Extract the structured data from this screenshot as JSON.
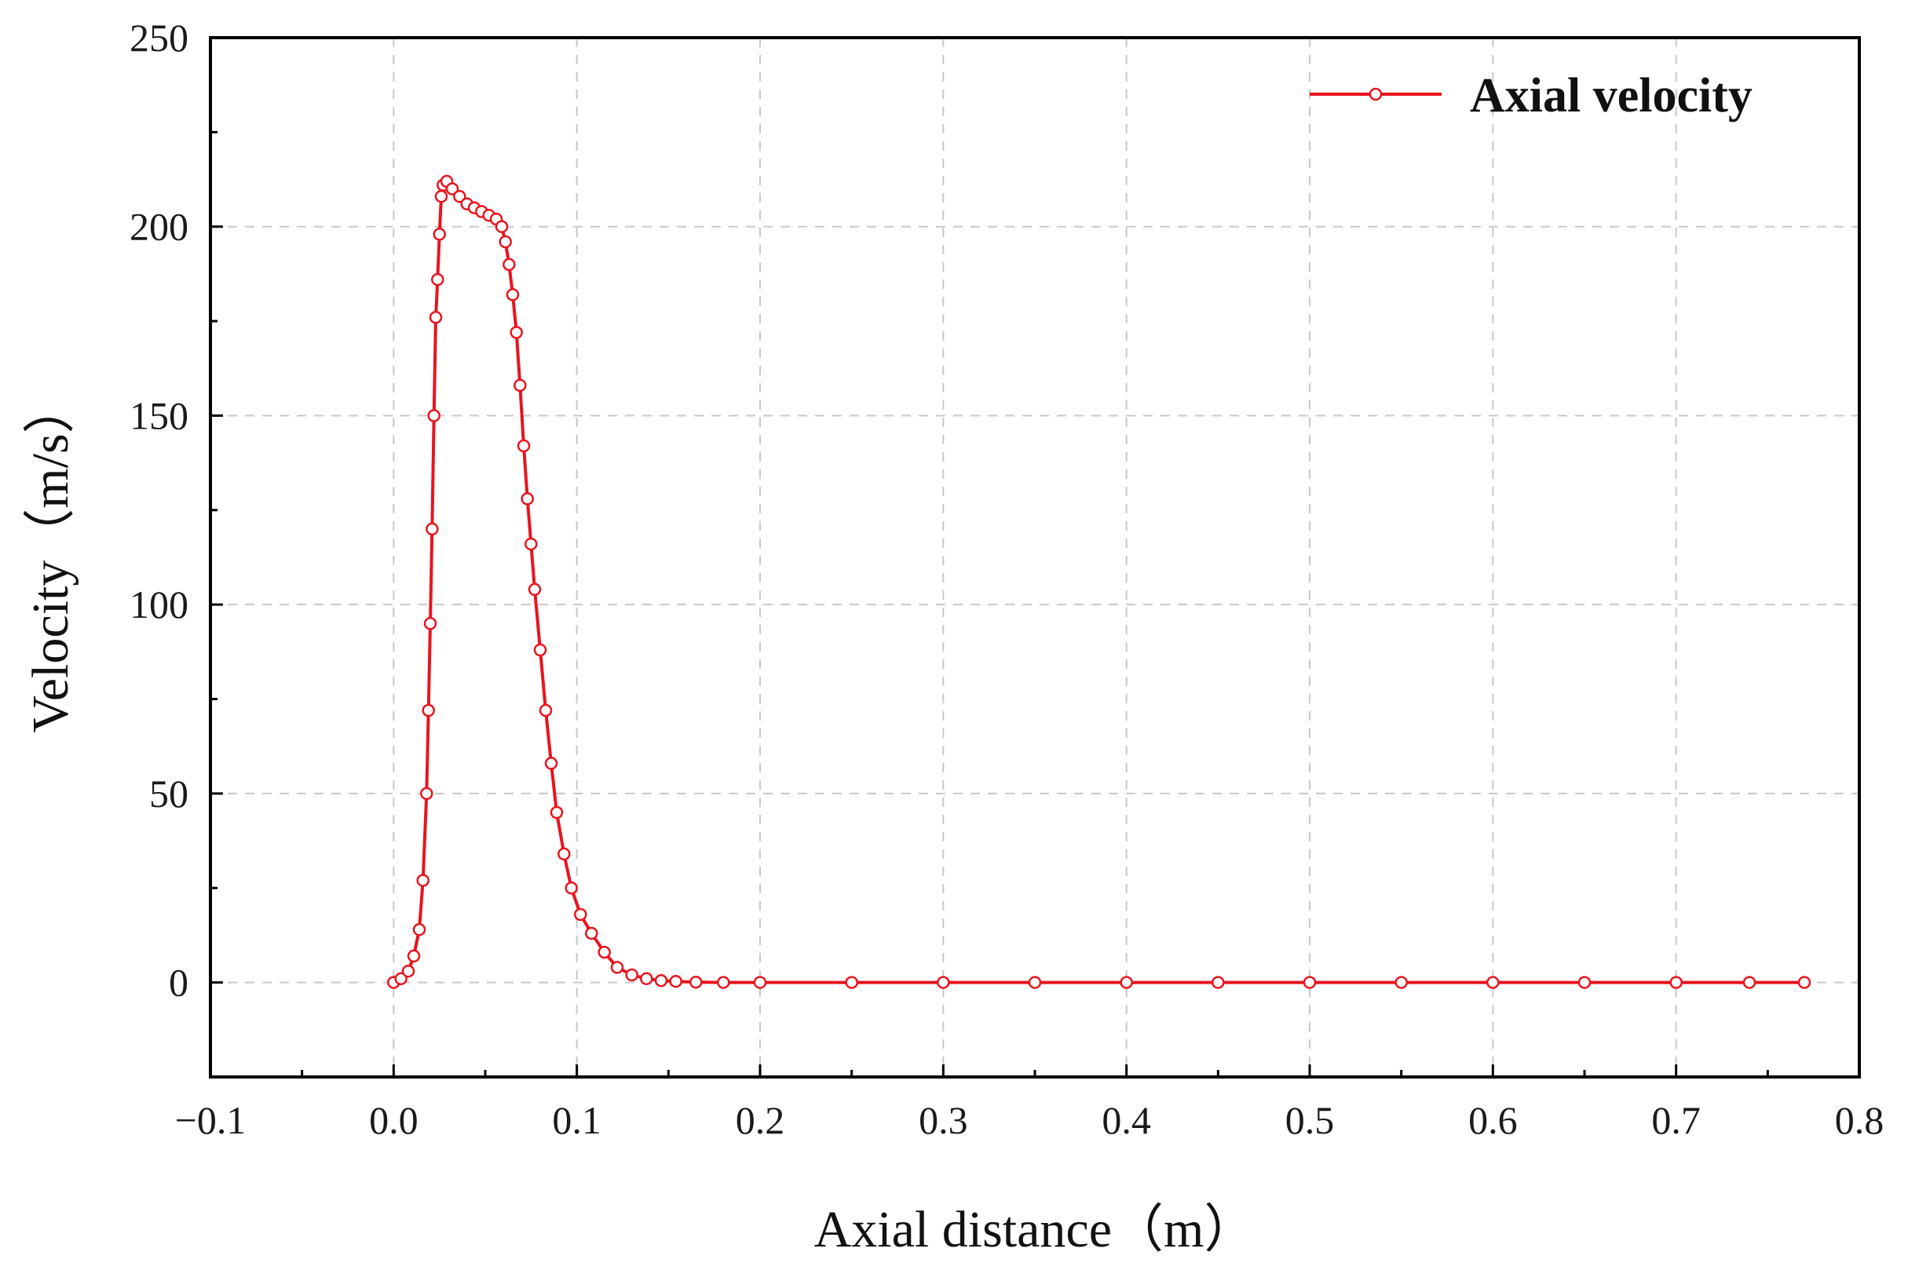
{
  "chart_data": {
    "type": "line",
    "title": "",
    "xlabel": "Axial distance（m）",
    "ylabel": "Velocity（m/s）",
    "xlim": [
      -0.1,
      0.8
    ],
    "ylim": [
      -25,
      250
    ],
    "x_ticks": [
      -0.1,
      0.0,
      0.1,
      0.2,
      0.3,
      0.4,
      0.5,
      0.6,
      0.7,
      0.8
    ],
    "x_tick_labels": [
      "−0.1",
      "0.0",
      "0.1",
      "0.2",
      "0.3",
      "0.4",
      "0.5",
      "0.6",
      "0.7",
      "0.8"
    ],
    "y_ticks": [
      0,
      50,
      100,
      150,
      200,
      250
    ],
    "y_tick_labels": [
      "0",
      "50",
      "100",
      "150",
      "200",
      "250"
    ],
    "grid": true,
    "legend_position": "top-right",
    "colors": {
      "series": "#e8141e",
      "grid": "#c8c8c8",
      "axis": "#000000"
    },
    "series": [
      {
        "name": "Axial velocity",
        "marker": "open-circle",
        "x": [
          0.0,
          0.004,
          0.008,
          0.011,
          0.014,
          0.016,
          0.018,
          0.019,
          0.02,
          0.021,
          0.022,
          0.023,
          0.024,
          0.025,
          0.026,
          0.027,
          0.029,
          0.032,
          0.036,
          0.04,
          0.044,
          0.048,
          0.052,
          0.056,
          0.059,
          0.061,
          0.063,
          0.065,
          0.067,
          0.069,
          0.071,
          0.073,
          0.075,
          0.077,
          0.08,
          0.083,
          0.086,
          0.089,
          0.093,
          0.097,
          0.102,
          0.108,
          0.115,
          0.122,
          0.13,
          0.138,
          0.146,
          0.154,
          0.165,
          0.18,
          0.2,
          0.25,
          0.3,
          0.35,
          0.4,
          0.45,
          0.5,
          0.55,
          0.6,
          0.65,
          0.7,
          0.74,
          0.77
        ],
        "y": [
          0,
          1,
          3,
          7,
          14,
          27,
          50,
          72,
          95,
          120,
          150,
          176,
          186,
          198,
          208,
          211,
          212,
          210,
          208,
          206,
          205,
          204,
          203,
          202,
          200,
          196,
          190,
          182,
          172,
          158,
          142,
          128,
          116,
          104,
          88,
          72,
          58,
          45,
          34,
          25,
          18,
          13,
          8,
          4,
          2,
          1,
          0.5,
          0.3,
          0.1,
          0,
          0,
          0,
          0,
          0,
          0,
          0,
          0,
          0,
          0,
          0,
          0,
          0,
          0
        ]
      }
    ]
  }
}
